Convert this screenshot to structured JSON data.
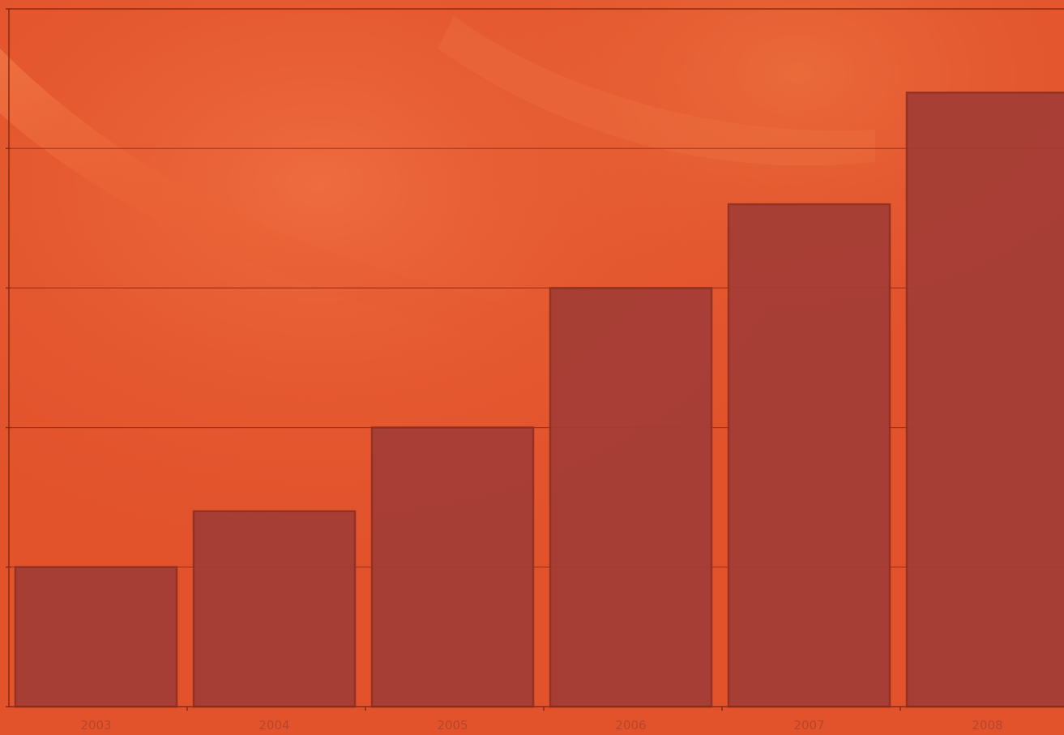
{
  "colors": {
    "background": "#e2532c",
    "background_light": "#f06a40",
    "bar_fill": "#a33d36",
    "bar_stroke": "#8e2f22",
    "grid": "#9a2d14",
    "axis": "#8a2a12",
    "tick_text": "#b8452a"
  },
  "chart_data": {
    "type": "bar",
    "categories": [
      "2003",
      "2004",
      "2005",
      "2006",
      "2007",
      "2008"
    ],
    "values": [
      1,
      1.4,
      2,
      3,
      3.6,
      4.4
    ],
    "ylim": [
      0,
      5
    ],
    "grid": true,
    "title": "",
    "xlabel": "",
    "ylabel": ""
  }
}
